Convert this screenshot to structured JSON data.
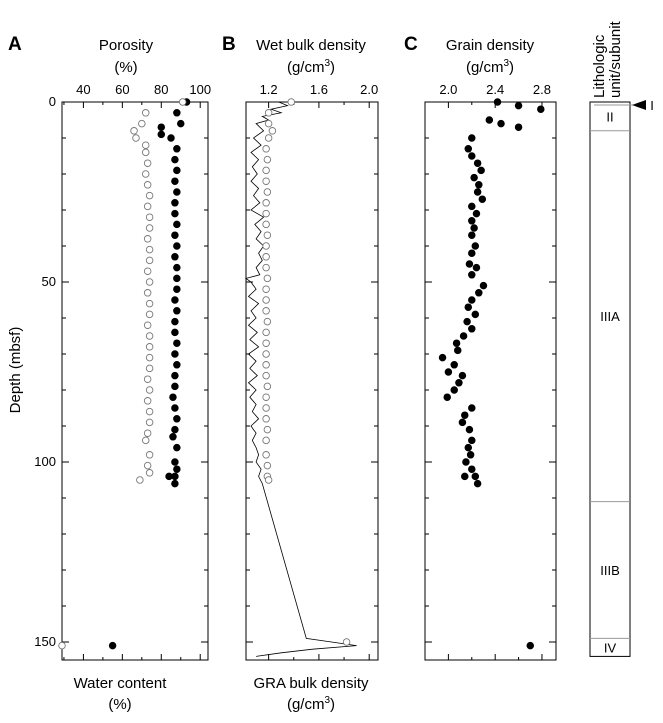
{
  "figure": {
    "y_axis": {
      "label": "Depth (mbsf)",
      "ylim": [
        0,
        155
      ],
      "ticks": [
        0,
        50,
        100,
        150
      ],
      "reversed": true
    }
  },
  "chart_data": [
    {
      "type": "scatter",
      "panel": "A",
      "title": "Porosity",
      "title_unit": "(%)",
      "bottom_label": "Water content",
      "bottom_unit": "(%)",
      "xlim": [
        29,
        104
      ],
      "xticks": [
        40,
        60,
        80,
        100
      ],
      "series": [
        {
          "name": "Porosity",
          "marker": "filled-circle",
          "points": [
            [
              93,
              0
            ],
            [
              88,
              3
            ],
            [
              90,
              6
            ],
            [
              80,
              7
            ],
            [
              80,
              9
            ],
            [
              85,
              10
            ],
            [
              88,
              13
            ],
            [
              87,
              16
            ],
            [
              88,
              19
            ],
            [
              87,
              22
            ],
            [
              88,
              25
            ],
            [
              87,
              28
            ],
            [
              87,
              31
            ],
            [
              88,
              34
            ],
            [
              87,
              37
            ],
            [
              88,
              40
            ],
            [
              87,
              43
            ],
            [
              88,
              46
            ],
            [
              88,
              49
            ],
            [
              88,
              52
            ],
            [
              87,
              55
            ],
            [
              88,
              58
            ],
            [
              87,
              61
            ],
            [
              87,
              64
            ],
            [
              88,
              67
            ],
            [
              87,
              70
            ],
            [
              88,
              73
            ],
            [
              87,
              76
            ],
            [
              87,
              79
            ],
            [
              86,
              82
            ],
            [
              87,
              85
            ],
            [
              88,
              88
            ],
            [
              87,
              91
            ],
            [
              86,
              93
            ],
            [
              88,
              96
            ],
            [
              87,
              100
            ],
            [
              88,
              102
            ],
            [
              84,
              104
            ],
            [
              87,
              104
            ],
            [
              87,
              106
            ],
            [
              55,
              151
            ]
          ]
        },
        {
          "name": "Water content",
          "marker": "open-circle",
          "points": [
            [
              91,
              0
            ],
            [
              72,
              3
            ],
            [
              70,
              6
            ],
            [
              66,
              8
            ],
            [
              67,
              10
            ],
            [
              72,
              12
            ],
            [
              72,
              14
            ],
            [
              73,
              17
            ],
            [
              72,
              20
            ],
            [
              73,
              23
            ],
            [
              74,
              26
            ],
            [
              73,
              29
            ],
            [
              74,
              32
            ],
            [
              74,
              35
            ],
            [
              73,
              38
            ],
            [
              74,
              41
            ],
            [
              74,
              44
            ],
            [
              73,
              47
            ],
            [
              74,
              50
            ],
            [
              73,
              53
            ],
            [
              74,
              56
            ],
            [
              74,
              59
            ],
            [
              73,
              62
            ],
            [
              74,
              65
            ],
            [
              74,
              68
            ],
            [
              74,
              71
            ],
            [
              74,
              74
            ],
            [
              73,
              77
            ],
            [
              74,
              80
            ],
            [
              73,
              83
            ],
            [
              74,
              86
            ],
            [
              74,
              89
            ],
            [
              73,
              92
            ],
            [
              72,
              94
            ],
            [
              74,
              98
            ],
            [
              73,
              101
            ],
            [
              74,
              103
            ],
            [
              69,
              105
            ],
            [
              29,
              151
            ]
          ]
        }
      ]
    },
    {
      "type": "line",
      "panel": "B",
      "title": "Wet bulk density",
      "title_unit": "(g/cm",
      "title_unit_sup": "3",
      "title_unit_tail": ")",
      "bottom_label": "GRA bulk density",
      "bottom_unit": "(g/cm",
      "bottom_unit_sup": "3",
      "bottom_unit_tail": ")",
      "xlim": [
        1.02,
        2.07
      ],
      "xticks": [
        1.2,
        1.6,
        2.0
      ],
      "xticklabels": [
        "1.2",
        "1.6",
        "2.0"
      ],
      "series": [
        {
          "name": "Wet bulk density",
          "marker": "open-circle",
          "points": [
            [
              1.38,
              0
            ],
            [
              1.2,
              3
            ],
            [
              1.2,
              6
            ],
            [
              1.23,
              8
            ],
            [
              1.2,
              10
            ],
            [
              1.18,
              13
            ],
            [
              1.19,
              16
            ],
            [
              1.18,
              19
            ],
            [
              1.18,
              22
            ],
            [
              1.19,
              25
            ],
            [
              1.18,
              28
            ],
            [
              1.18,
              31
            ],
            [
              1.18,
              34
            ],
            [
              1.19,
              37
            ],
            [
              1.18,
              40
            ],
            [
              1.18,
              43
            ],
            [
              1.18,
              46
            ],
            [
              1.19,
              49
            ],
            [
              1.18,
              52
            ],
            [
              1.18,
              55
            ],
            [
              1.18,
              58
            ],
            [
              1.19,
              61
            ],
            [
              1.18,
              64
            ],
            [
              1.18,
              67
            ],
            [
              1.18,
              70
            ],
            [
              1.18,
              73
            ],
            [
              1.18,
              76
            ],
            [
              1.19,
              79
            ],
            [
              1.18,
              82
            ],
            [
              1.18,
              85
            ],
            [
              1.18,
              88
            ],
            [
              1.19,
              91
            ],
            [
              1.18,
              94
            ],
            [
              1.18,
              98
            ],
            [
              1.19,
              101
            ],
            [
              1.19,
              104
            ],
            [
              1.2,
              105
            ],
            [
              1.82,
              150
            ]
          ]
        },
        {
          "name": "GRA bulk density",
          "marker": "line",
          "points": [
            [
              1.28,
              0
            ],
            [
              1.35,
              1
            ],
            [
              1.22,
              2
            ],
            [
              1.3,
              3
            ],
            [
              1.15,
              4
            ],
            [
              1.2,
              5
            ],
            [
              1.1,
              6
            ],
            [
              1.16,
              8
            ],
            [
              1.08,
              10
            ],
            [
              1.14,
              12
            ],
            [
              1.06,
              14
            ],
            [
              1.12,
              16
            ],
            [
              1.07,
              18
            ],
            [
              1.11,
              20
            ],
            [
              1.06,
              22
            ],
            [
              1.12,
              24
            ],
            [
              1.08,
              26
            ],
            [
              1.13,
              28
            ],
            [
              1.06,
              30
            ],
            [
              1.16,
              32
            ],
            [
              1.09,
              34
            ],
            [
              1.14,
              36
            ],
            [
              1.1,
              38
            ],
            [
              1.16,
              40
            ],
            [
              1.12,
              42
            ],
            [
              1.15,
              44
            ],
            [
              1.1,
              46
            ],
            [
              1.13,
              48
            ],
            [
              1.02,
              49
            ],
            [
              1.06,
              50
            ],
            [
              1.1,
              52
            ],
            [
              1.04,
              54
            ],
            [
              1.12,
              56
            ],
            [
              1.06,
              58
            ],
            [
              1.1,
              60
            ],
            [
              1.04,
              62
            ],
            [
              1.11,
              64
            ],
            [
              1.05,
              66
            ],
            [
              1.12,
              68
            ],
            [
              1.04,
              70
            ],
            [
              1.1,
              72
            ],
            [
              1.05,
              74
            ],
            [
              1.11,
              76
            ],
            [
              1.04,
              78
            ],
            [
              1.1,
              80
            ],
            [
              1.05,
              82
            ],
            [
              1.1,
              84
            ],
            [
              1.07,
              86
            ],
            [
              1.12,
              88
            ],
            [
              1.06,
              90
            ],
            [
              1.1,
              92
            ],
            [
              1.07,
              94
            ],
            [
              1.1,
              96
            ],
            [
              1.12,
              98
            ],
            [
              1.1,
              100
            ],
            [
              1.14,
              102
            ],
            [
              1.12,
              104
            ],
            [
              1.15,
              106
            ],
            [
              1.5,
              149
            ],
            [
              1.7,
              150
            ],
            [
              1.9,
              151
            ],
            [
              1.55,
              152
            ],
            [
              1.3,
              153
            ],
            [
              1.1,
              154
            ]
          ]
        }
      ]
    },
    {
      "type": "scatter",
      "panel": "C",
      "title": "Grain density",
      "title_unit": "(g/cm",
      "title_unit_sup": "3",
      "title_unit_tail": ")",
      "xlim": [
        1.8,
        2.92
      ],
      "xticks": [
        2.0,
        2.4,
        2.8
      ],
      "xticklabels": [
        "2.0",
        "2.4",
        "2.8"
      ],
      "series": [
        {
          "name": "Grain density",
          "marker": "filled-circle",
          "points": [
            [
              2.42,
              0
            ],
            [
              2.6,
              1
            ],
            [
              2.79,
              2
            ],
            [
              2.35,
              5
            ],
            [
              2.45,
              6
            ],
            [
              2.6,
              7
            ],
            [
              2.2,
              10
            ],
            [
              2.17,
              13
            ],
            [
              2.2,
              15
            ],
            [
              2.25,
              17
            ],
            [
              2.28,
              19
            ],
            [
              2.22,
              21
            ],
            [
              2.26,
              23
            ],
            [
              2.25,
              25
            ],
            [
              2.29,
              27
            ],
            [
              2.2,
              29
            ],
            [
              2.24,
              31
            ],
            [
              2.2,
              33
            ],
            [
              2.22,
              35
            ],
            [
              2.2,
              37
            ],
            [
              2.23,
              40
            ],
            [
              2.2,
              42
            ],
            [
              2.18,
              45
            ],
            [
              2.24,
              46
            ],
            [
              2.2,
              48
            ],
            [
              2.3,
              51
            ],
            [
              2.26,
              53
            ],
            [
              2.2,
              55
            ],
            [
              2.17,
              57
            ],
            [
              2.23,
              59
            ],
            [
              2.16,
              61
            ],
            [
              2.2,
              63
            ],
            [
              2.13,
              65
            ],
            [
              2.07,
              67
            ],
            [
              2.08,
              69
            ],
            [
              1.95,
              71
            ],
            [
              2.05,
              73
            ],
            [
              2.0,
              75
            ],
            [
              2.12,
              76
            ],
            [
              2.09,
              78
            ],
            [
              2.05,
              80
            ],
            [
              1.99,
              82
            ],
            [
              2.2,
              85
            ],
            [
              2.14,
              87
            ],
            [
              2.12,
              89
            ],
            [
              2.18,
              91
            ],
            [
              2.2,
              94
            ],
            [
              2.17,
              96
            ],
            [
              2.19,
              98
            ],
            [
              2.15,
              100
            ],
            [
              2.2,
              102
            ],
            [
              2.14,
              104
            ],
            [
              2.25,
              106
            ],
            [
              2.23,
              104
            ],
            [
              2.7,
              151
            ]
          ]
        }
      ]
    }
  ],
  "lithology": {
    "title_line1": "Lithologic",
    "title_line2": "unit/subunit",
    "marker_label": "I",
    "units": [
      {
        "label": "II",
        "top": 0,
        "bottom": 8
      },
      {
        "label": "IIIA",
        "top": 8,
        "bottom": 111
      },
      {
        "label": "IIIB",
        "top": 111,
        "bottom": 149
      },
      {
        "label": "IV",
        "top": 149,
        "bottom": 154
      }
    ]
  }
}
